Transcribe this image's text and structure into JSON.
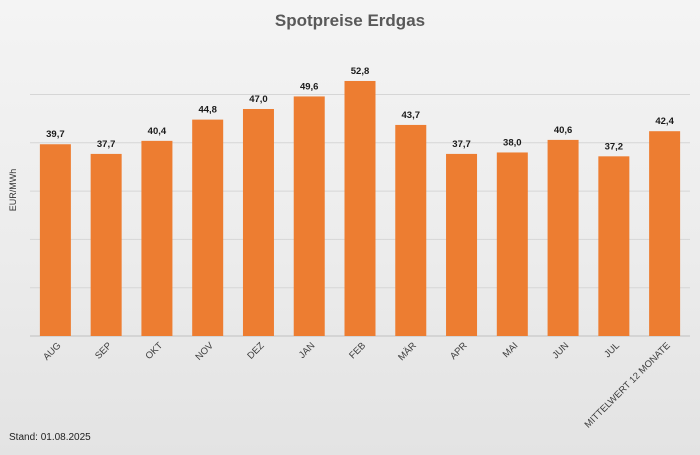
{
  "chart_data": {
    "type": "bar",
    "title": "Spotpreise Erdgas",
    "ylabel": "EUR/MWh",
    "xlabel": "",
    "categories": [
      "AUG",
      "SEP",
      "OKT",
      "NOV",
      "DEZ",
      "JAN",
      "FEB",
      "MÄR",
      "APR",
      "MAI",
      "JUN",
      "JUL",
      "MITTELWERT 12 MONATE"
    ],
    "values": [
      39.7,
      37.7,
      40.4,
      44.8,
      47.0,
      49.6,
      52.8,
      43.7,
      37.7,
      38.0,
      40.6,
      37.2,
      42.4
    ],
    "value_labels": [
      "39,7",
      "37,7",
      "40,4",
      "44,8",
      "47,0",
      "49,6",
      "52,8",
      "43,7",
      "37,7",
      "38,0",
      "40,6",
      "37,2",
      "42,4"
    ],
    "ylim": [
      0,
      60
    ],
    "gridlines": [
      10,
      20,
      30,
      40,
      50
    ],
    "grid": true,
    "bar_color": "#ED7D31"
  },
  "footer": {
    "stand": "Stand: 01.08.2025"
  }
}
